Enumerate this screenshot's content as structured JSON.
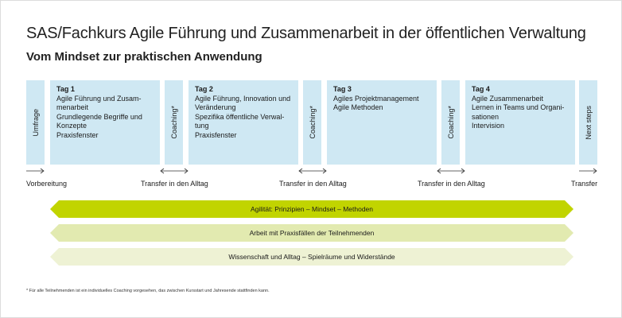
{
  "title": "SAS/Fachkurs Agile Führung und Zusammenarbeit in der öffentlichen Verwaltung",
  "subtitle": "Vom Mindset zur praktischen Anwendung",
  "columns": {
    "umfrage": "Umfrage",
    "coaching1": "Coaching*",
    "coaching2": "Coaching*",
    "coaching3": "Coaching*",
    "next_steps": "Next steps"
  },
  "days": [
    {
      "title": "Tag 1",
      "lines": [
        "Agile Führung und Zusam-",
        "menarbeit",
        "Grundlegende Begriffe und",
        "Konzepte",
        "Praxisfenster"
      ]
    },
    {
      "title": "Tag 2",
      "lines": [
        "Agile Führung, Innovation und",
        "Veränderung",
        "Spezifika öffentliche Verwal-",
        "tung",
        "Praxisfenster"
      ]
    },
    {
      "title": "Tag 3",
      "lines": [
        "Agiles Projektmanagement",
        "Agile Methoden"
      ]
    },
    {
      "title": "Tag 4",
      "lines": [
        "Agile Zusammenarbeit",
        "Lernen in Teams und Organi-",
        "sationen",
        "Intervision"
      ]
    }
  ],
  "timeline": {
    "vorbereitung": "Vorbereitung",
    "transfer1": "Transfer in den Alltag",
    "transfer2": "Transfer in den Alltag",
    "transfer3": "Transfer in den Alltag",
    "transfer_end": "Transfer"
  },
  "bands": [
    {
      "text": "Agilität: Prinzipien – Mindset – Methoden",
      "color": "#c1d400"
    },
    {
      "text": "Arbeit mit Praxisfällen der Teilnehmenden",
      "color": "#e2eab0"
    },
    {
      "text": "Wissenschaft und Alltag – Spielräume und Widerstände",
      "color": "#eef2d4"
    }
  ],
  "footnote": "* Für alle Teilnehmenden ist ein individuelles Coaching vorgesehen, das zwischen Kursstart und Jahresende stattfinden kann.",
  "colors": {
    "box": "#cfe8f3",
    "arrow": "#333333"
  }
}
